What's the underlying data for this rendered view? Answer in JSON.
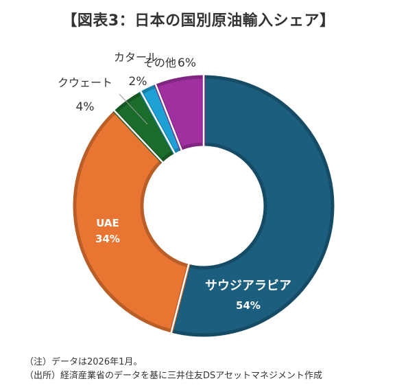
{
  "chart_data": {
    "type": "pie",
    "title": "【図表3：日本の国別原油輸入シェア】",
    "categories": [
      "サウジアラビア",
      "UAE",
      "クウェート",
      "カタール",
      "その他"
    ],
    "values": [
      54,
      34,
      4,
      2,
      6
    ],
    "value_labels": [
      "54%",
      "34%",
      "4%",
      "2%",
      "6%"
    ],
    "colors": [
      "#1b5e7e",
      "#e87532",
      "#1b6b2a",
      "#1da1d4",
      "#a02fa0"
    ],
    "style": "donut"
  },
  "notes": [
    "（注）データは2026年1月。",
    "（出所）経済産業省のデータを基に三井住友DSアセットマネジメント作成"
  ]
}
